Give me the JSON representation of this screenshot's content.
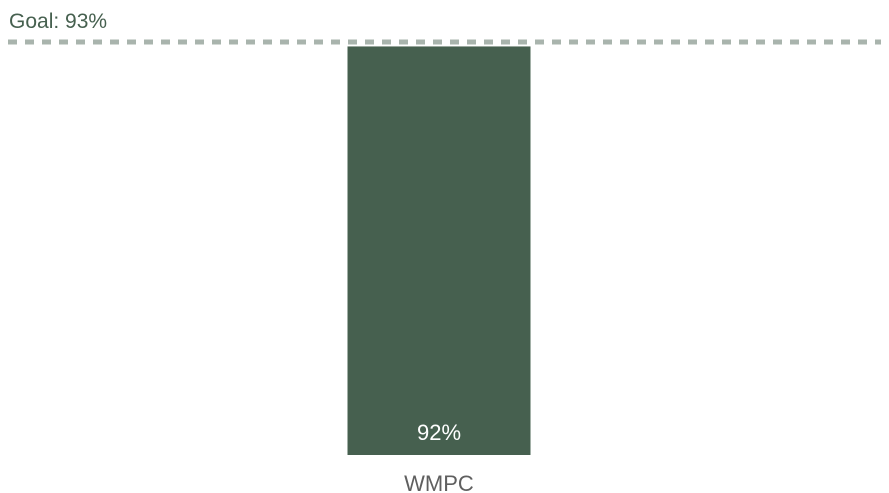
{
  "chart_data": {
    "type": "bar",
    "categories": [
      "WMPC"
    ],
    "values": [
      92
    ],
    "data_labels": [
      "92%"
    ],
    "goal": {
      "label": "Goal: 93%",
      "value": 93
    },
    "ylim": [
      0,
      93
    ],
    "grid": false,
    "legend": "none",
    "colors": {
      "bar": "#46604f",
      "bar_label": "#ffffff",
      "goal_line": "#a9b4ad",
      "goal_text": "#46604f",
      "category_text": "#5f5f5f"
    }
  }
}
